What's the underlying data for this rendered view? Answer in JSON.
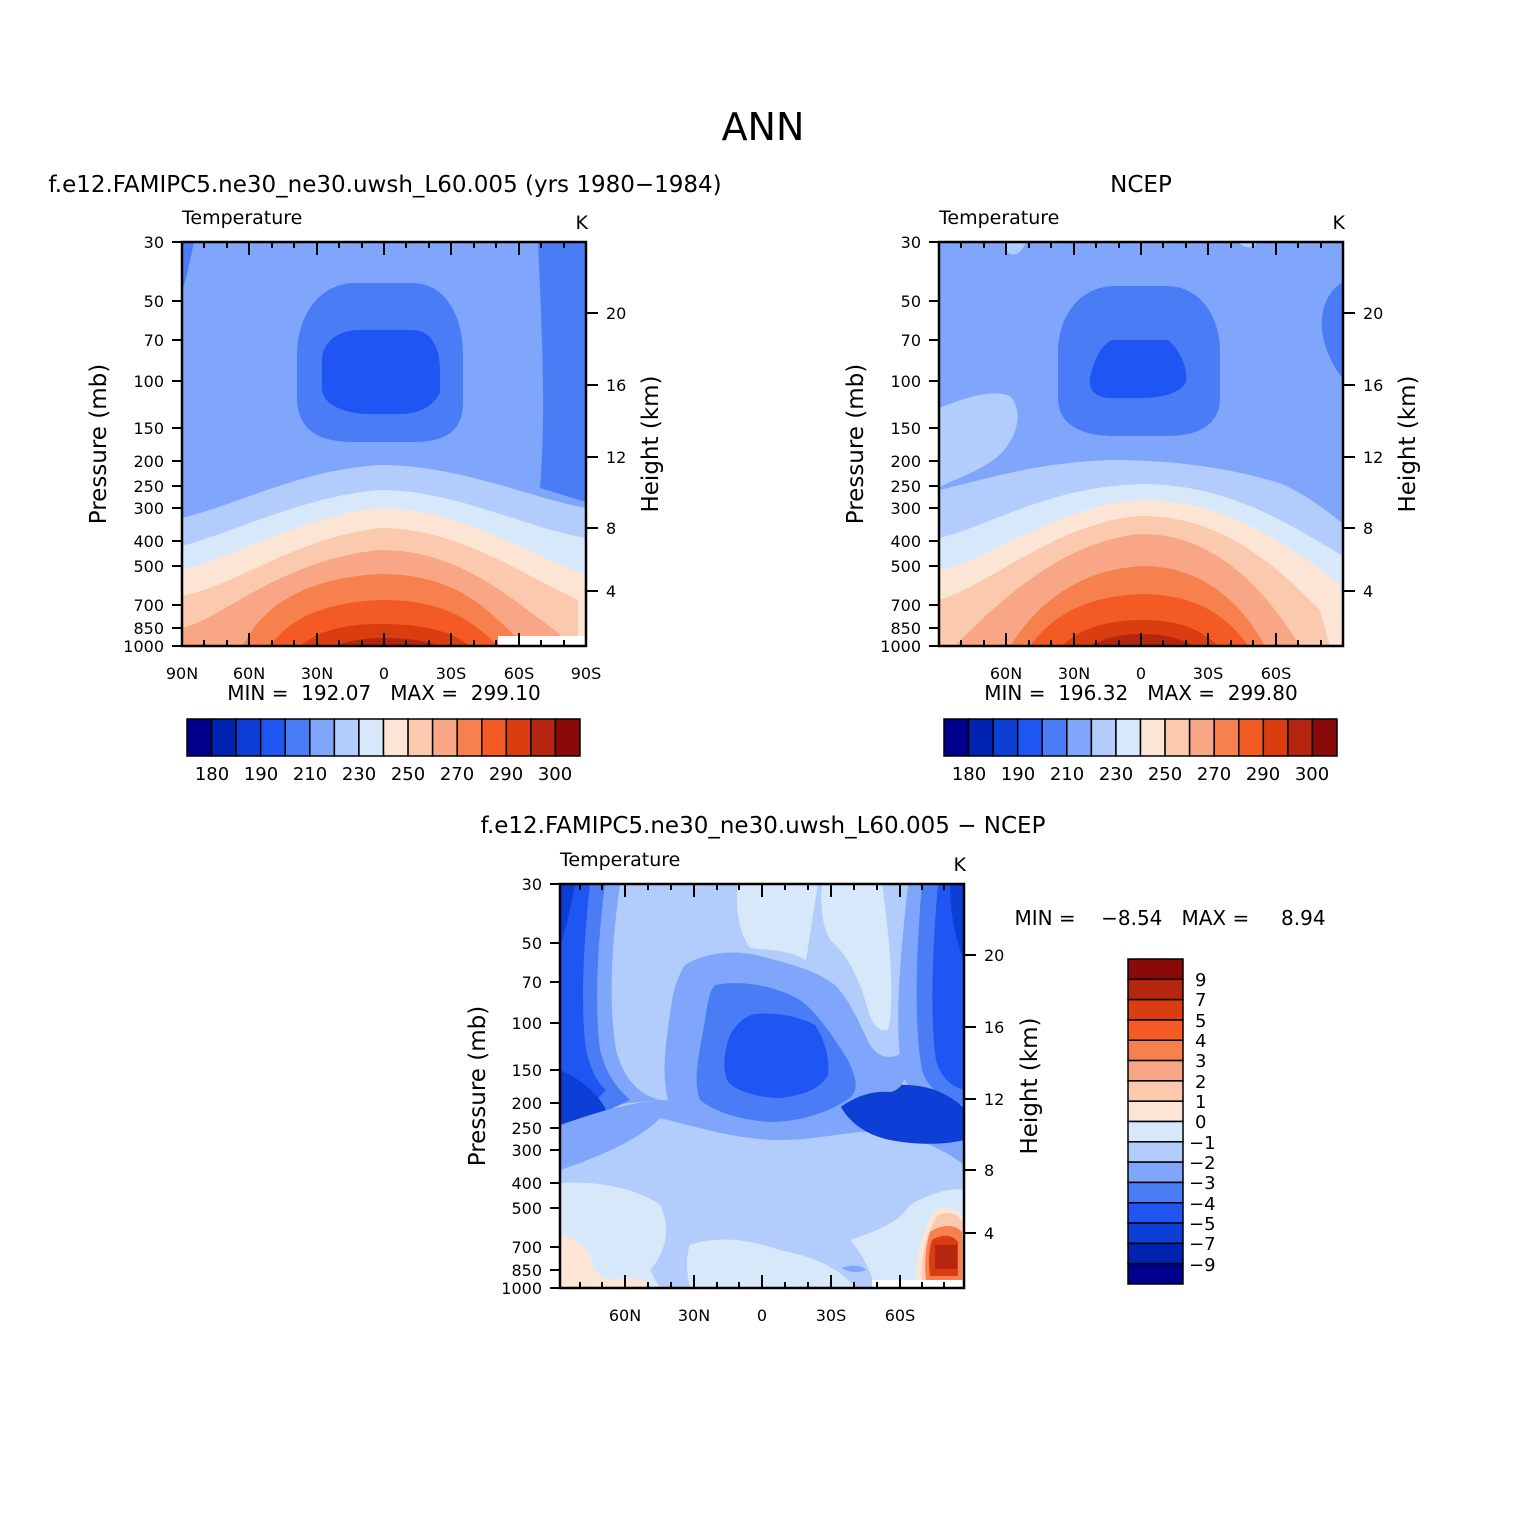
{
  "figure": {
    "title": "ANN"
  },
  "chart_data": [
    {
      "id": "model",
      "type": "heatmap",
      "title": "f.e12.FAMIPC5.ne30_ne30.uwsh_L60.005 (yrs 1980−1984)",
      "subtitle": "Temperature",
      "units": "K",
      "xlabel": "",
      "ylabel": "Pressure (mb)",
      "ylabel_right": "Height (km)",
      "x_ticks": [
        "90N",
        "60N",
        "30N",
        "0",
        "30S",
        "60S",
        "90S"
      ],
      "y_ticks": [
        "30",
        "50",
        "70",
        "100",
        "150",
        "200",
        "250",
        "300",
        "400",
        "500",
        "700",
        "850",
        "1000"
      ],
      "y_right_ticks": [
        "20",
        "16",
        "12",
        "8",
        "4"
      ],
      "stats": "MIN =  192.07   MAX =  299.10",
      "colorbar_labels": [
        "180",
        "190",
        "210",
        "230",
        "250",
        "270",
        "290",
        "300"
      ],
      "field_min": 192.07,
      "field_max": 299.1
    },
    {
      "id": "obs",
      "type": "heatmap",
      "title": "NCEP",
      "subtitle": "Temperature",
      "units": "K",
      "xlabel": "",
      "ylabel": "Pressure (mb)",
      "ylabel_right": "Height (km)",
      "x_ticks": [
        "60N",
        "30N",
        "0",
        "30S",
        "60S"
      ],
      "y_ticks": [
        "30",
        "50",
        "70",
        "100",
        "150",
        "200",
        "250",
        "300",
        "400",
        "500",
        "700",
        "850",
        "1000"
      ],
      "y_right_ticks": [
        "20",
        "16",
        "12",
        "8",
        "4"
      ],
      "stats": "MIN =  196.32   MAX =  299.80",
      "colorbar_labels": [
        "180",
        "190",
        "210",
        "230",
        "250",
        "270",
        "290",
        "300"
      ],
      "field_min": 196.32,
      "field_max": 299.8
    },
    {
      "id": "diff",
      "type": "heatmap",
      "title": "f.e12.FAMIPC5.ne30_ne30.uwsh_L60.005 − NCEP",
      "subtitle": "Temperature",
      "units": "K",
      "xlabel": "",
      "ylabel": "Pressure (mb)",
      "ylabel_right": "Height (km)",
      "x_ticks": [
        "60N",
        "30N",
        "0",
        "30S",
        "60S"
      ],
      "y_ticks": [
        "30",
        "50",
        "70",
        "100",
        "150",
        "200",
        "250",
        "300",
        "400",
        "500",
        "700",
        "850",
        "1000"
      ],
      "y_right_ticks": [
        "20",
        "16",
        "12",
        "8",
        "4"
      ],
      "stats": "MIN =    −8.54   MAX =     8.94",
      "colorbar_labels": [
        "9",
        "7",
        "5",
        "4",
        "3",
        "2",
        "1",
        "0",
        "−1",
        "−2",
        "−3",
        "−4",
        "−5",
        "−7",
        "−9"
      ],
      "field_min": -8.54,
      "field_max": 8.94
    }
  ],
  "palette": [
    "#00008b",
    "#0022b0",
    "#0d3ed6",
    "#1f55f2",
    "#4a7df5",
    "#7fa6fb",
    "#b2ccfc",
    "#d8e8fb",
    "#fde5d6",
    "#fbc9ae",
    "#f8a685",
    "#f6814f",
    "#f35a24",
    "#da3d10",
    "#b52610",
    "#8a0a0a"
  ]
}
